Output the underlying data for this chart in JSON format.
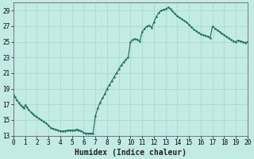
{
  "xlabel": "Humidex (Indice chaleur)",
  "bg_color": "#c2ebe5",
  "grid_color": "#a8d8d2",
  "line_color": "#1a6b5a",
  "marker_color": "#1a6b5a",
  "xlim": [
    0,
    20
  ],
  "ylim": [
    13,
    30
  ],
  "xticks": [
    0,
    1,
    2,
    3,
    4,
    5,
    6,
    7,
    8,
    9,
    10,
    11,
    12,
    13,
    14,
    15,
    16,
    17,
    18,
    19,
    20
  ],
  "yticks": [
    13,
    15,
    17,
    19,
    21,
    23,
    25,
    27,
    29
  ],
  "x": [
    0.0,
    0.15,
    0.3,
    0.45,
    0.6,
    0.75,
    0.9,
    1.0,
    1.15,
    1.3,
    1.5,
    1.65,
    1.8,
    2.0,
    2.2,
    2.4,
    2.6,
    2.8,
    3.0,
    3.2,
    3.4,
    3.6,
    3.8,
    4.0,
    4.2,
    4.4,
    4.6,
    4.8,
    5.0,
    5.2,
    5.4,
    5.6,
    5.8,
    6.0,
    6.2,
    6.4,
    6.6,
    6.8,
    7.0,
    7.2,
    7.4,
    7.6,
    7.8,
    8.0,
    8.2,
    8.4,
    8.6,
    8.8,
    9.0,
    9.2,
    9.4,
    9.6,
    9.8,
    10.0,
    10.2,
    10.4,
    10.6,
    10.8,
    11.0,
    11.2,
    11.4,
    11.6,
    11.8,
    12.0,
    12.2,
    12.4,
    12.6,
    12.8,
    13.0,
    13.2,
    13.4,
    13.6,
    13.8,
    14.0,
    14.2,
    14.4,
    14.6,
    14.8,
    15.0,
    15.2,
    15.4,
    15.6,
    15.8,
    16.0,
    16.2,
    16.4,
    16.6,
    16.8,
    17.0,
    17.2,
    17.4,
    17.6,
    17.8,
    18.0,
    18.2,
    18.4,
    18.6,
    18.8,
    19.0,
    19.2,
    19.4,
    19.6,
    19.8,
    20.0
  ],
  "y": [
    18.2,
    17.9,
    17.5,
    17.2,
    16.9,
    16.7,
    16.5,
    16.9,
    16.6,
    16.3,
    16.0,
    15.8,
    15.6,
    15.4,
    15.2,
    15.0,
    14.8,
    14.6,
    14.3,
    14.0,
    13.9,
    13.8,
    13.7,
    13.6,
    13.6,
    13.6,
    13.7,
    13.7,
    13.7,
    13.7,
    13.8,
    13.7,
    13.6,
    13.4,
    13.3,
    13.3,
    13.3,
    13.3,
    15.5,
    16.5,
    17.2,
    17.8,
    18.3,
    19.0,
    19.5,
    20.0,
    20.5,
    21.0,
    21.5,
    22.0,
    22.4,
    22.7,
    23.0,
    25.0,
    25.3,
    25.4,
    25.3,
    25.1,
    26.3,
    26.7,
    27.0,
    27.1,
    26.8,
    27.5,
    28.2,
    28.7,
    29.0,
    29.1,
    29.2,
    29.4,
    29.2,
    28.9,
    28.6,
    28.3,
    28.1,
    27.9,
    27.7,
    27.5,
    27.2,
    26.9,
    26.6,
    26.4,
    26.2,
    26.0,
    25.9,
    25.8,
    25.7,
    25.5,
    27.0,
    26.7,
    26.5,
    26.3,
    26.1,
    25.9,
    25.7,
    25.5,
    25.3,
    25.1,
    25.0,
    25.2,
    25.1,
    25.0,
    24.9,
    25.0
  ]
}
